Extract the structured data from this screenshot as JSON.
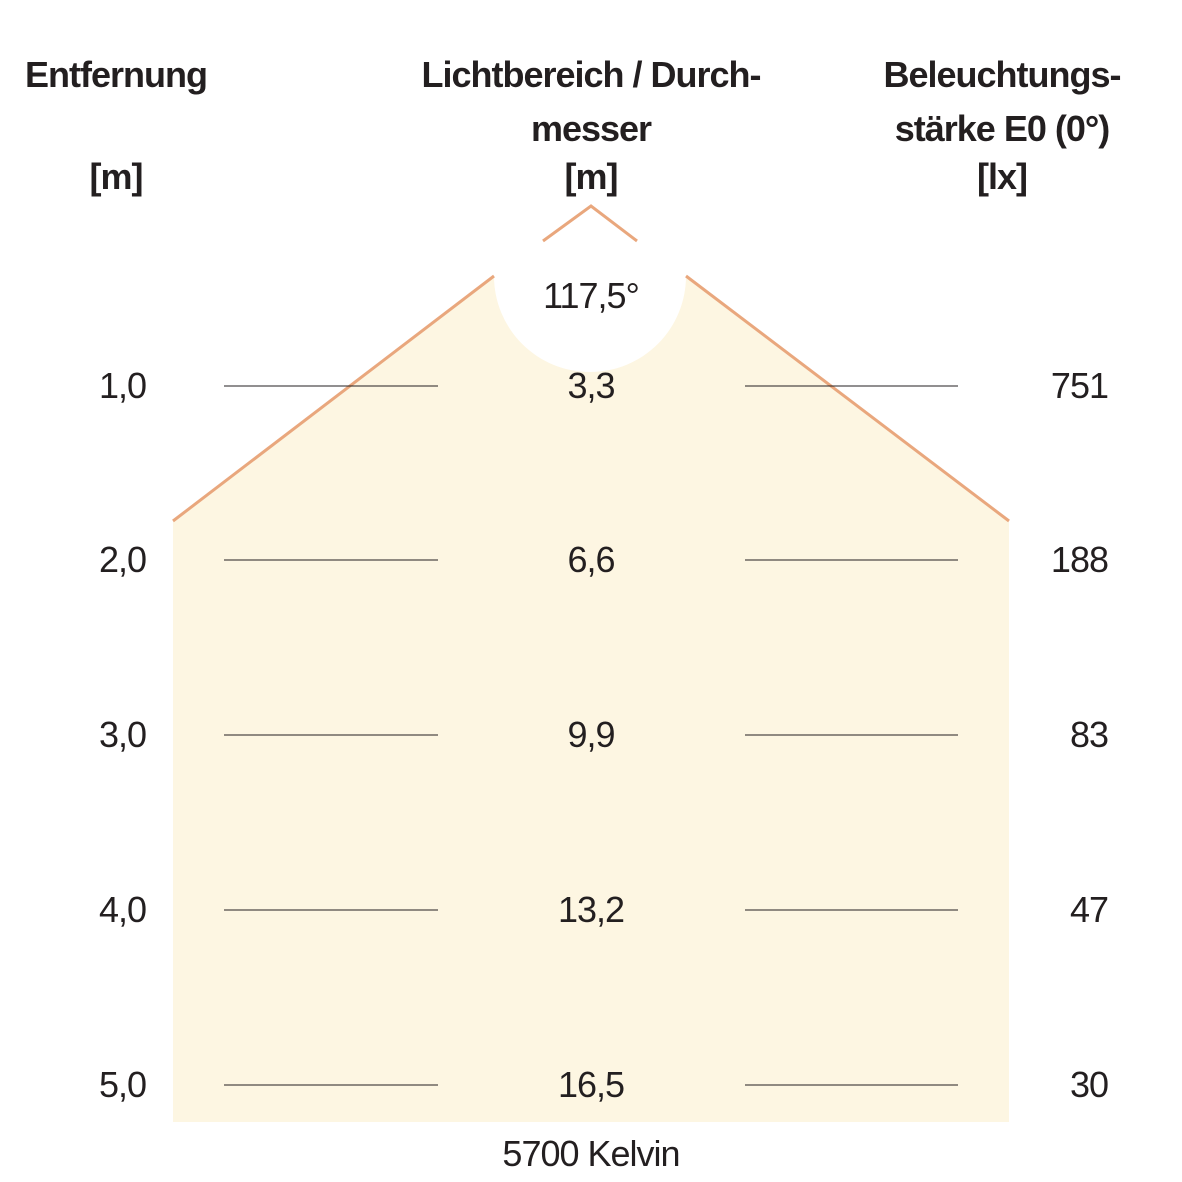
{
  "headers": {
    "distance": {
      "line1": "Entfernung",
      "unit": "[m]"
    },
    "diameter": {
      "line1": "Lichtbereich / Durch-",
      "line2": "messer",
      "unit": "[m]"
    },
    "illuminance": {
      "line1": "Beleuchtungs-",
      "line2": "stärke E0 (0°)",
      "unit": "[lx]"
    }
  },
  "beam_angle": "117,5°",
  "rows": [
    {
      "distance": "1,0",
      "diameter": "3,3",
      "illuminance": "751"
    },
    {
      "distance": "2,0",
      "diameter": "6,6",
      "illuminance": "188"
    },
    {
      "distance": "3,0",
      "diameter": "9,9",
      "illuminance": "83"
    },
    {
      "distance": "4,0",
      "diameter": "13,2",
      "illuminance": "47"
    },
    {
      "distance": "5,0",
      "diameter": "16,5",
      "illuminance": "30"
    }
  ],
  "color_temperature": "5700 Kelvin",
  "colors": {
    "light_fill": "#fdf6e2",
    "beam_edge": "#e9a77d",
    "text": "#231f20",
    "rule": "#231f20"
  }
}
